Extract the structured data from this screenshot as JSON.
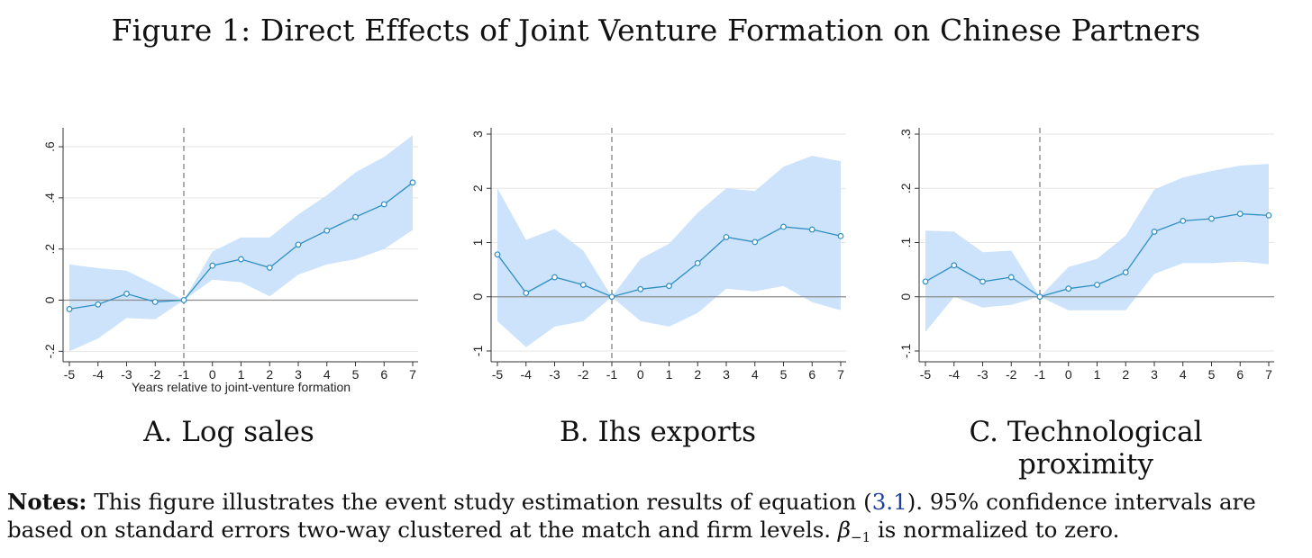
{
  "figure": {
    "title": "Figure 1: Direct Effects of Joint Venture Formation on Chinese Partners"
  },
  "notes": {
    "label": "Notes:",
    "text_before_ref": " This figure illustrates the event study estimation results of equation (",
    "ref": "3.1",
    "text_after_ref": "). 95% confidence intervals are",
    "line2_before_symbol": "based on standard errors two-way clustered at the match and firm levels. ",
    "symbol": "β",
    "symbol_subscript": "−1",
    "line2_after_symbol": " is normalized to zero."
  },
  "colors": {
    "band": "#cce3fb",
    "line": "#2f8fc3",
    "zero_line": "#8c8c8c",
    "event_line": "#8c8c8c",
    "grid": "#e6e6e6",
    "axis": "#333333"
  },
  "chart_data": [
    {
      "type": "line",
      "panel_caption": "A. Log sales",
      "xlabel": "Years relative to joint-venture formation",
      "ylabel": "",
      "x": [
        -5,
        -4,
        -3,
        -2,
        -1,
        0,
        1,
        2,
        3,
        4,
        5,
        6,
        7
      ],
      "y": [
        -0.035,
        -0.017,
        0.025,
        -0.007,
        0.0,
        0.135,
        0.16,
        0.127,
        0.217,
        0.272,
        0.325,
        0.375,
        0.46
      ],
      "ci_lower": [
        -0.2,
        -0.15,
        -0.07,
        -0.075,
        0.0,
        0.08,
        0.07,
        0.015,
        0.1,
        0.14,
        0.16,
        0.2,
        0.275
      ],
      "ci_upper": [
        0.14,
        0.125,
        0.115,
        0.06,
        0.0,
        0.19,
        0.245,
        0.245,
        0.335,
        0.41,
        0.5,
        0.56,
        0.645
      ],
      "xlim": [
        -5,
        7
      ],
      "ylim": [
        -0.22,
        0.66
      ],
      "yticks": [
        -0.2,
        0,
        0.2,
        0.4,
        0.6
      ],
      "ytick_labels": [
        "-.2",
        "0",
        ".2",
        ".4",
        ".6"
      ],
      "xticks": [
        -5,
        -4,
        -3,
        -2,
        -1,
        0,
        1,
        2,
        3,
        4,
        5,
        6,
        7
      ],
      "xtick_labels": [
        "-5",
        "-4",
        "-3",
        "-2",
        "-1",
        "0",
        "1",
        "2",
        "3",
        "4",
        "5",
        "6",
        "7"
      ],
      "event_x": -1,
      "grid": true
    },
    {
      "type": "line",
      "panel_caption": "B. Ihs exports",
      "xlabel": "",
      "ylabel": "",
      "x": [
        -5,
        -4,
        -3,
        -2,
        -1,
        0,
        1,
        2,
        3,
        4,
        5,
        6,
        7
      ],
      "y": [
        0.78,
        0.07,
        0.36,
        0.22,
        0.0,
        0.14,
        0.2,
        0.62,
        1.1,
        1.01,
        1.29,
        1.24,
        1.12
      ],
      "ci_lower": [
        -0.45,
        -0.93,
        -0.55,
        -0.45,
        0.0,
        -0.45,
        -0.55,
        -0.3,
        0.15,
        0.1,
        0.2,
        -0.1,
        -0.25
      ],
      "ci_upper": [
        2.0,
        1.05,
        1.25,
        0.85,
        0.0,
        0.7,
        0.98,
        1.55,
        2.0,
        1.95,
        2.4,
        2.6,
        2.5
      ],
      "xlim": [
        -5,
        7
      ],
      "ylim": [
        -1.1,
        3.05
      ],
      "yticks": [
        -1,
        0,
        1,
        2,
        3
      ],
      "ytick_labels": [
        "-1",
        "0",
        "1",
        "2",
        "3"
      ],
      "xticks": [
        -5,
        -4,
        -3,
        -2,
        -1,
        0,
        1,
        2,
        3,
        4,
        5,
        6,
        7
      ],
      "xtick_labels": [
        "-5",
        "-4",
        "-3",
        "-2",
        "-1",
        "0",
        "1",
        "2",
        "3",
        "4",
        "5",
        "6",
        "7"
      ],
      "event_x": -1,
      "grid": true
    },
    {
      "type": "line",
      "panel_caption": "C. Technological proximity",
      "xlabel": "",
      "ylabel": "",
      "x": [
        -5,
        -4,
        -3,
        -2,
        -1,
        0,
        1,
        2,
        3,
        4,
        5,
        6,
        7
      ],
      "y": [
        0.028,
        0.058,
        0.028,
        0.036,
        0.0,
        0.015,
        0.022,
        0.045,
        0.12,
        0.14,
        0.144,
        0.153,
        0.15
      ],
      "ci_lower": [
        -0.065,
        0.0,
        -0.02,
        -0.015,
        0.0,
        -0.025,
        -0.025,
        -0.025,
        0.042,
        0.062,
        0.062,
        0.065,
        0.06
      ],
      "ci_upper": [
        0.122,
        0.12,
        0.082,
        0.085,
        0.0,
        0.055,
        0.07,
        0.113,
        0.198,
        0.22,
        0.232,
        0.242,
        0.245
      ],
      "xlim": [
        -5,
        7
      ],
      "ylim": [
        -0.11,
        0.305
      ],
      "yticks": [
        -0.1,
        0,
        0.1,
        0.2,
        0.3
      ],
      "ytick_labels": [
        "-.1",
        "0",
        ".1",
        ".2",
        ".3"
      ],
      "xticks": [
        -5,
        -4,
        -3,
        -2,
        -1,
        0,
        1,
        2,
        3,
        4,
        5,
        6,
        7
      ],
      "xtick_labels": [
        "-5",
        "-4",
        "-3",
        "-2",
        "-1",
        "0",
        "1",
        "2",
        "3",
        "4",
        "5",
        "6",
        "7"
      ],
      "event_x": -1,
      "grid": true
    }
  ]
}
